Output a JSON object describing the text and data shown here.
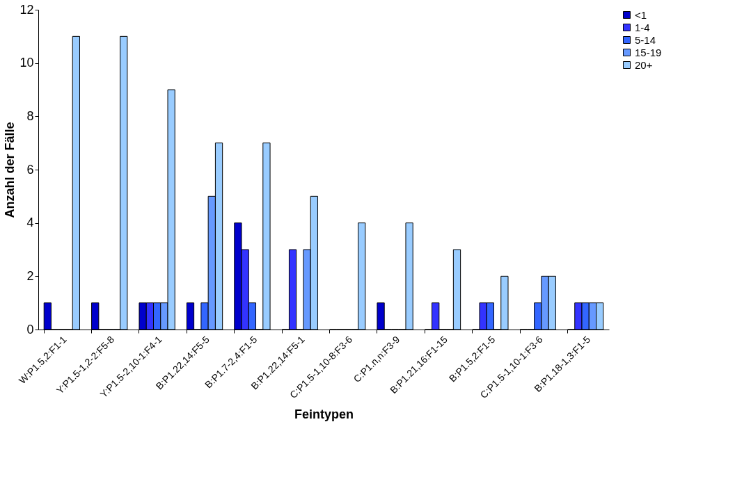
{
  "chart_data": {
    "type": "bar",
    "xlabel": "Feintypen",
    "ylabel": "Anzahl der Fälle",
    "categories": [
      "W:P1.5,2:F1-1",
      "Y:P1.5-1,2-2:F5-8",
      "Y:P1.5-2,10-1:F4-1",
      "B:P1.22,14:F5-5",
      "B:P1.7-2,4:F1-5",
      "B:P1.22,14:F5-1",
      "C:P1.5-1,10-8:F3-6",
      "C:P1.n,n:F3-9",
      "B:P1.21,16:F1-15",
      "B:P1.5,2:F1-5",
      "C:P1.5-1,10-1:F3-6",
      "B:P1.18-1,3:F1-5"
    ],
    "series": [
      {
        "name": "<1",
        "color": "#0000cc",
        "values": [
          1,
          1,
          1,
          1,
          4,
          0,
          0,
          1,
          0,
          0,
          0,
          0
        ]
      },
      {
        "name": "1-4",
        "color": "#3333ff",
        "values": [
          0,
          0,
          1,
          0,
          3,
          3,
          0,
          0,
          1,
          1,
          0,
          1
        ]
      },
      {
        "name": "5-14",
        "color": "#3366ff",
        "values": [
          0,
          0,
          1,
          1,
          1,
          0,
          0,
          0,
          0,
          1,
          1,
          1
        ]
      },
      {
        "name": "15-19",
        "color": "#6699ff",
        "values": [
          0,
          0,
          1,
          5,
          0,
          3,
          0,
          0,
          0,
          0,
          2,
          1
        ]
      },
      {
        "name": "20+",
        "color": "#99ccff",
        "values": [
          11,
          11,
          9,
          7,
          7,
          5,
          4,
          4,
          3,
          2,
          2,
          1
        ]
      }
    ],
    "ylim": [
      0,
      12
    ],
    "yticks": [
      0,
      2,
      4,
      6,
      8,
      10,
      12
    ],
    "grid": false,
    "legend": "right"
  }
}
